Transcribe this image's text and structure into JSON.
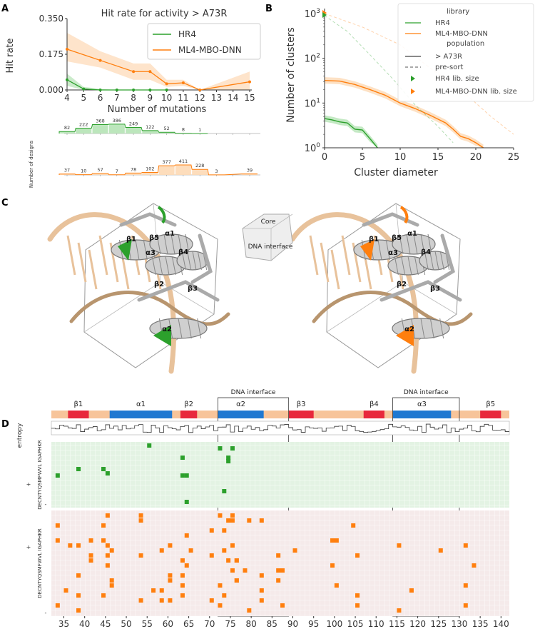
{
  "panels": {
    "a": "A",
    "b": "B",
    "c": "C",
    "d": "D"
  },
  "colors": {
    "hr4": "#2ca02c",
    "ml4": "#ff7f0e",
    "ml4_band": "#fdd9b5",
    "hr4_band": "#b5e3b5",
    "helix": "#1f78d1",
    "strand": "#e8283c",
    "loop": "#f7c49a",
    "dna": "#e8c29b"
  },
  "chart_data": [
    {
      "type": "line",
      "title": "Hit rate for activity > A73R",
      "xlabel": "Number of mutations",
      "ylabel": "Hit rate",
      "xlim": [
        4,
        15.5
      ],
      "ylim": [
        0,
        0.35
      ],
      "xticks": [
        "4",
        "5",
        "6",
        "7",
        "8",
        "9",
        "10",
        "11",
        "12",
        "13",
        "14",
        "15"
      ],
      "yticks": [
        "0.000",
        "0.175",
        "0.350"
      ],
      "series": [
        {
          "name": "HR4",
          "x": [
            4,
            5,
            6,
            7,
            8,
            9,
            10
          ],
          "values": [
            0.05,
            0.005,
            0.0,
            0.0,
            0.0,
            0.0,
            0.0
          ],
          "lower": [
            0.02,
            0.0,
            0.0,
            0.0,
            0.0,
            0.0,
            0.0
          ],
          "upper": [
            0.08,
            0.015,
            0.005,
            0.0,
            0.0,
            0.0,
            0.0
          ]
        },
        {
          "name": "ML4-MBO-DNN",
          "x": [
            4,
            6,
            8,
            9,
            10,
            11,
            12,
            15
          ],
          "values": [
            0.2,
            0.145,
            0.09,
            0.09,
            0.03,
            0.035,
            0.0,
            0.04
          ],
          "lower": [
            0.14,
            0.11,
            0.05,
            0.05,
            0.015,
            0.02,
            0.0,
            0.0
          ],
          "upper": [
            0.28,
            0.19,
            0.13,
            0.13,
            0.05,
            0.05,
            0.0,
            0.09
          ]
        }
      ],
      "legend": "top-right"
    },
    {
      "type": "bar",
      "ylabel": "Number of designs",
      "series": [
        {
          "name": "HR4",
          "x": [
            4,
            5,
            6,
            7,
            8,
            9,
            10,
            11,
            12
          ],
          "values": [
            82,
            222,
            368,
            386,
            249,
            122,
            52,
            8,
            1
          ]
        },
        {
          "name": "ML4-MBO-DNN",
          "x": [
            4,
            5,
            6,
            7,
            8,
            9,
            10,
            11,
            12,
            13,
            15
          ],
          "values": [
            37,
            10,
            57,
            7,
            78,
            102,
            377,
            411,
            228,
            3,
            39
          ]
        }
      ]
    },
    {
      "type": "line",
      "xlabel": "Cluster diameter",
      "ylabel": "Number of clusters",
      "xlim": [
        0,
        25
      ],
      "ylog": true,
      "ylim": [
        1,
        1200
      ],
      "xticks": [
        "0",
        "5",
        "10",
        "15",
        "20",
        "25"
      ],
      "yticks": [
        "10^0",
        "10^1",
        "10^2",
        "10^3"
      ],
      "legend_title_library": "library",
      "legend_title_population": "population",
      "series": [
        {
          "name": "HR4",
          "population": "> A73R",
          "x": [
            0,
            1,
            2,
            3,
            4,
            5,
            6,
            7
          ],
          "values": [
            4.5,
            4.2,
            3.8,
            3.6,
            2.6,
            2.5,
            1.6,
            1.0
          ]
        },
        {
          "name": "ML4-MBO-DNN",
          "population": "> A73R",
          "x": [
            0,
            2,
            4,
            6,
            8,
            10,
            12,
            14,
            16,
            17,
            18,
            19,
            20,
            21
          ],
          "values": [
            32,
            31,
            26,
            20,
            15,
            10,
            7.5,
            5.3,
            3.6,
            2.6,
            1.8,
            1.6,
            1.3,
            1.0
          ]
        },
        {
          "name": "HR4",
          "population": "pre-sort",
          "x": [
            0,
            3,
            6,
            9,
            12,
            15,
            17
          ],
          "values": [
            900,
            400,
            120,
            35,
            9,
            3,
            1.3
          ]
        },
        {
          "name": "ML4-MBO-DNN",
          "population": "pre-sort",
          "x": [
            0,
            5,
            10,
            14,
            18,
            22,
            25
          ],
          "values": [
            1000,
            500,
            200,
            60,
            20,
            5,
            2
          ]
        }
      ],
      "legend_entries": [
        "HR4",
        "ML4-MBO-DNN",
        "> A73R",
        "pre-sort",
        "HR4 lib. size",
        "ML4-MBO-DNN lib. size"
      ],
      "legend": "top-right"
    },
    {
      "type": "heatmap",
      "ylabel_top": "+",
      "ylabel_bottom": "-",
      "ylabel": "DECNTYQSMFWVL IGAPHKR",
      "entropy_label": "entropy",
      "xticks": [
        "35",
        "40",
        "45",
        "50",
        "55",
        "60",
        "65",
        "70",
        "75",
        "80",
        "85",
        "90",
        "95",
        "100",
        "105",
        "110",
        "115",
        "120",
        "125",
        "130",
        "135",
        "140"
      ],
      "secondary_structure": [
        {
          "label": "β1",
          "type": "strand",
          "start": 36,
          "end": 41
        },
        {
          "label": "α1",
          "type": "helix",
          "start": 46,
          "end": 61
        },
        {
          "label": "β2",
          "type": "strand",
          "start": 63,
          "end": 67
        },
        {
          "label": "α2",
          "type": "helix",
          "start": 72,
          "end": 83
        },
        {
          "label": "β3",
          "type": "strand",
          "start": 89,
          "end": 95
        },
        {
          "label": "β4",
          "type": "strand",
          "start": 107,
          "end": 112
        },
        {
          "label": "α3",
          "type": "helix",
          "start": 114,
          "end": 128
        },
        {
          "label": "β5",
          "type": "strand",
          "start": 135,
          "end": 140
        }
      ],
      "annotation_boxes": [
        {
          "label": "DNA interface",
          "start": 72,
          "end": 89
        },
        {
          "label": "DNA interface",
          "start": 114,
          "end": 130
        }
      ]
    }
  ],
  "panel_c": {
    "cube_labels": [
      "Core",
      "DNA interface"
    ],
    "structure_labels": [
      "β1",
      "β5",
      "α1",
      "α3",
      "β4",
      "β2",
      "β3",
      "α2"
    ]
  }
}
